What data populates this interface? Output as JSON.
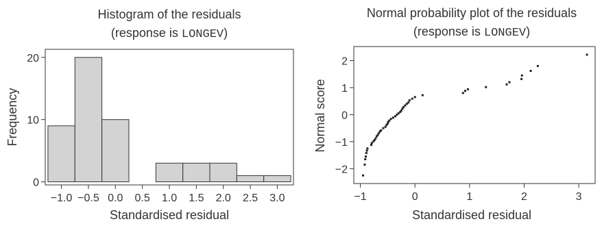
{
  "chart_data": [
    {
      "type": "bar",
      "title_line1": "Histogram of the residuals",
      "title_line2_prefix": "(response is ",
      "title_line2_code": "LONGEV",
      "title_line2_suffix": ")",
      "xlabel": "Standardised residual",
      "ylabel": "Frequency",
      "bins": [
        {
          "start": -1.25,
          "end": -0.75,
          "value": 9
        },
        {
          "start": -0.75,
          "end": -0.25,
          "value": 20
        },
        {
          "start": -0.25,
          "end": 0.25,
          "value": 10
        },
        {
          "start": 0.25,
          "end": 0.75,
          "value": 0
        },
        {
          "start": 0.75,
          "end": 1.25,
          "value": 3
        },
        {
          "start": 1.25,
          "end": 1.75,
          "value": 3
        },
        {
          "start": 1.75,
          "end": 2.25,
          "value": 3
        },
        {
          "start": 2.25,
          "end": 2.75,
          "value": 1
        },
        {
          "start": 2.75,
          "end": 3.25,
          "value": 1
        }
      ],
      "xlim": [
        -1.3,
        3.3
      ],
      "ylim": [
        -0.5,
        21.3
      ],
      "xticks": [
        -1.0,
        -0.5,
        0.0,
        0.5,
        1.0,
        1.5,
        2.0,
        2.5,
        3.0
      ],
      "xtick_labels": [
        "−1.0",
        "−0.5",
        "0.0",
        "0.5",
        "1.0",
        "1.5",
        "2.0",
        "2.5",
        "3.0"
      ],
      "yticks": [
        0,
        10,
        20
      ],
      "ytick_labels": [
        "0",
        "10",
        "20"
      ],
      "grid": false
    },
    {
      "type": "scatter",
      "title_line1": "Normal probability plot of the residuals",
      "title_line2_prefix": "(response is ",
      "title_line2_code": "LONGEV",
      "title_line2_suffix": ")",
      "xlabel": "Standardised residual",
      "ylabel": "Normal score",
      "points": [
        [
          -0.95,
          -2.25
        ],
        [
          -0.92,
          -1.85
        ],
        [
          -0.91,
          -1.65
        ],
        [
          -0.9,
          -1.55
        ],
        [
          -0.89,
          -1.42
        ],
        [
          -0.88,
          -1.33
        ],
        [
          -0.87,
          -1.25
        ],
        [
          -0.8,
          -1.12
        ],
        [
          -0.79,
          -1.05
        ],
        [
          -0.76,
          -0.99
        ],
        [
          -0.74,
          -0.94
        ],
        [
          -0.72,
          -0.88
        ],
        [
          -0.7,
          -0.8
        ],
        [
          -0.68,
          -0.75
        ],
        [
          -0.66,
          -0.68
        ],
        [
          -0.64,
          -0.62
        ],
        [
          -0.62,
          -0.58
        ],
        [
          -0.58,
          -0.5
        ],
        [
          -0.54,
          -0.45
        ],
        [
          -0.52,
          -0.38
        ],
        [
          -0.5,
          -0.33
        ],
        [
          -0.49,
          -0.27
        ],
        [
          -0.47,
          -0.22
        ],
        [
          -0.44,
          -0.16
        ],
        [
          -0.4,
          -0.11
        ],
        [
          -0.36,
          -0.06
        ],
        [
          -0.33,
          0.0
        ],
        [
          -0.3,
          0.05
        ],
        [
          -0.27,
          0.1
        ],
        [
          -0.25,
          0.15
        ],
        [
          -0.23,
          0.22
        ],
        [
          -0.21,
          0.28
        ],
        [
          -0.18,
          0.34
        ],
        [
          -0.15,
          0.4
        ],
        [
          -0.12,
          0.45
        ],
        [
          -0.1,
          0.53
        ],
        [
          -0.05,
          0.59
        ],
        [
          0.0,
          0.65
        ],
        [
          0.14,
          0.72
        ],
        [
          0.88,
          0.8
        ],
        [
          0.92,
          0.88
        ],
        [
          0.97,
          0.94
        ],
        [
          1.3,
          1.02
        ],
        [
          1.68,
          1.12
        ],
        [
          1.73,
          1.2
        ],
        [
          1.95,
          1.32
        ],
        [
          1.96,
          1.45
        ],
        [
          2.12,
          1.62
        ],
        [
          2.25,
          1.8
        ],
        [
          3.15,
          2.22
        ]
      ],
      "xlim": [
        -1.12,
        3.3
      ],
      "ylim": [
        -2.55,
        2.52
      ],
      "xticks": [
        -1,
        0,
        1,
        2,
        3
      ],
      "xtick_labels": [
        "−1",
        "0",
        "1",
        "2",
        "3"
      ],
      "yticks": [
        -2,
        -1,
        0,
        1,
        2
      ],
      "ytick_labels": [
        "−2",
        "−1",
        "0",
        "1",
        "2"
      ],
      "grid": false
    }
  ]
}
